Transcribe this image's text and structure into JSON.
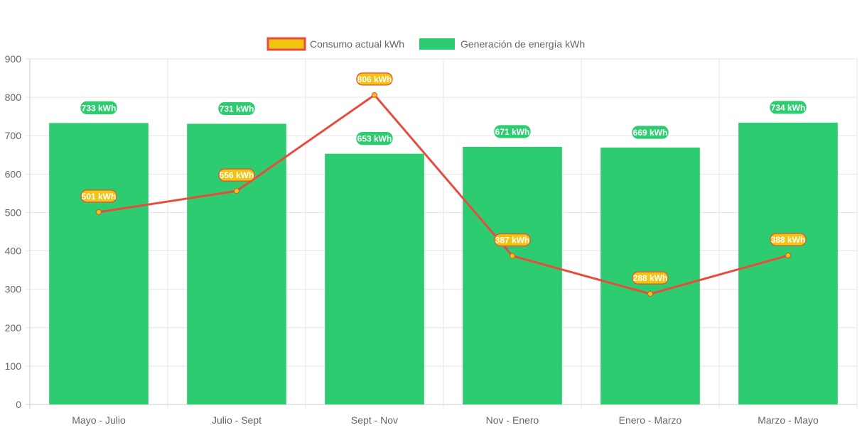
{
  "chart_data": {
    "type": "bar",
    "categories": [
      "Mayo - Julio",
      "Julio - Sept",
      "Sept - Nov",
      "Nov - Enero",
      "Enero - Marzo",
      "Marzo - Mayo"
    ],
    "series": [
      {
        "name": "Consumo actual kWh",
        "type": "line",
        "values": [
          501,
          556,
          806,
          387,
          288,
          388
        ],
        "color": "#e74c3c",
        "fill": "#f1c40f"
      },
      {
        "name": "Generación de energía kWh",
        "type": "bar",
        "values": [
          733,
          731,
          653,
          671,
          669,
          734
        ],
        "color": "#2ecc71"
      }
    ],
    "data_label_suffix": " kWh",
    "ylim": [
      0,
      900
    ],
    "yticks": [
      0,
      100,
      200,
      300,
      400,
      500,
      600,
      700,
      800,
      900
    ],
    "grid": true,
    "legend": "top"
  }
}
